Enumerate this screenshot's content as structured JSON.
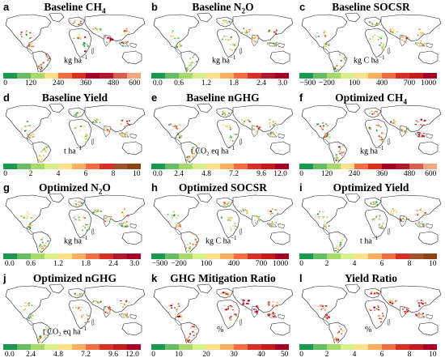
{
  "panels": [
    {
      "label": "a",
      "title": "Baseline CH",
      "title_sub": "4",
      "title_rest": "",
      "unit": "kg ha",
      "unit_sup": "−1",
      "ticks": [
        "0",
        "120",
        "240",
        "360",
        "480",
        "600"
      ],
      "palette": "ch4",
      "unit_left": 78
    },
    {
      "label": "b",
      "title": "Baseline N",
      "title_sub": "2",
      "title_rest": "O",
      "unit": "kg ha",
      "unit_sup": "−1",
      "ticks": [
        "0.0",
        "0.6",
        "1.2",
        "1.8",
        "2.4",
        "3.0"
      ],
      "palette": "n2o",
      "unit_left": 78
    },
    {
      "label": "c",
      "title": "Baseline SOCSR",
      "title_sub": "",
      "title_rest": "",
      "unit": "kg C ha",
      "unit_sup": "−1",
      "ticks": [
        "−500",
        "−200",
        "100",
        "400",
        "700",
        "1000"
      ],
      "palette": "socsr",
      "unit_left": 70
    },
    {
      "label": "d",
      "title": "Baseline Yield",
      "title_sub": "",
      "title_rest": "",
      "unit": "t ha",
      "unit_sup": "−1",
      "ticks": [
        "0",
        "2",
        "4",
        "6",
        "8",
        "10"
      ],
      "palette": "yield",
      "unit_left": 78
    },
    {
      "label": "e",
      "title": "Baseline nGHG",
      "title_sub": "",
      "title_rest": "",
      "unit": "t CO₂ eq ha",
      "unit_sup": "−1",
      "ticks": [
        "0.0",
        "2.4",
        "4.8",
        "7.2",
        "9.6",
        "12.0"
      ],
      "palette": "nghg",
      "unit_left": 52
    },
    {
      "label": "f",
      "title": "Optimized CH",
      "title_sub": "4",
      "title_rest": "",
      "unit": "kg ha",
      "unit_sup": "−1",
      "ticks": [
        "0",
        "120",
        "240",
        "360",
        "480",
        "600"
      ],
      "palette": "ch4",
      "unit_left": 78
    },
    {
      "label": "g",
      "title": "Optimized N",
      "title_sub": "2",
      "title_rest": "O",
      "unit": "kg ha",
      "unit_sup": "−1",
      "ticks": [
        "0.0",
        "0.6",
        "1.2",
        "1.8",
        "2.4",
        "3.0"
      ],
      "palette": "n2o",
      "unit_left": 78
    },
    {
      "label": "h",
      "title": "Optimized SOCSR",
      "title_sub": "",
      "title_rest": "",
      "unit": "kg C ha",
      "unit_sup": "−1",
      "ticks": [
        "−500",
        "−200",
        "100",
        "400",
        "700",
        "1000"
      ],
      "palette": "socsr",
      "unit_left": 70
    },
    {
      "label": "i",
      "title": "Optimized Yield",
      "title_sub": "",
      "title_rest": "",
      "unit": "t ha",
      "unit_sup": "−1",
      "ticks": [
        "0",
        "2",
        "4",
        "6",
        "8",
        "10"
      ],
      "palette": "yield",
      "unit_left": 78
    },
    {
      "label": "j",
      "title": "Optimized nGHG",
      "title_sub": "",
      "title_rest": "",
      "unit": "t CO₂ eq ha",
      "unit_sup": "−1",
      "ticks": [
        "0.0",
        "2.4",
        "4.8",
        "7.2",
        "9.6",
        "12.0"
      ],
      "palette": "nghg",
      "unit_left": 52
    },
    {
      "label": "k",
      "title": "GHG Mitigation Ratio",
      "title_sub": "",
      "title_rest": "",
      "unit": "%",
      "unit_sup": "",
      "ticks": [
        "0",
        "10",
        "20",
        "30",
        "40",
        "50"
      ],
      "palette": "ratio",
      "unit_left": 84
    },
    {
      "label": "l",
      "title": "Yield Ratio",
      "title_sub": "",
      "title_rest": "",
      "unit": "%",
      "unit_sup": "",
      "ticks": [
        "0",
        "2",
        "4",
        "6",
        "8",
        "10"
      ],
      "palette": "ratio",
      "unit_left": 84
    }
  ],
  "palettes": {
    "ch4": [
      "#1a9850",
      "#66bd63",
      "#a6d96a",
      "#fee08b",
      "#f46d43",
      "#d7301f",
      "#a50026",
      "#b2182b",
      "#d6604d",
      "#f4a582"
    ],
    "n2o": [
      "#1a9850",
      "#66bd63",
      "#a6d96a",
      "#d9ef8b",
      "#fee08b",
      "#fdae61",
      "#f46d43",
      "#d73027",
      "#b2182b",
      "#a50026"
    ],
    "socsr": [
      "#1a9850",
      "#66bd63",
      "#a6d96a",
      "#d9ef8b",
      "#fee08b",
      "#fdae61",
      "#f46d43",
      "#d73027",
      "#c51b1b",
      "#a50026"
    ],
    "yield": [
      "#1a9850",
      "#66bd63",
      "#a6d96a",
      "#d9ef8b",
      "#fee08b",
      "#fdae61",
      "#f46d43",
      "#d73027",
      "#a0522d",
      "#8b4513"
    ],
    "nghg": [
      "#1a9850",
      "#66bd63",
      "#a6d96a",
      "#d9ef8b",
      "#fee08b",
      "#fdae61",
      "#f46d43",
      "#d73027",
      "#c51b1b",
      "#a50026"
    ],
    "ratio": [
      "#1a9850",
      "#66bd63",
      "#a6d96a",
      "#d9ef8b",
      "#fee08b",
      "#fdae61",
      "#f46d43",
      "#d73027",
      "#c51b1b",
      "#a50026"
    ]
  },
  "colors": {
    "land": "#ffffff",
    "coast": "#222222",
    "veg_green": "#66bd63",
    "veg_dark": "#1a9850",
    "veg_yellow": "#d9ef8b",
    "veg_orange": "#f46d43",
    "veg_red": "#d73027"
  }
}
